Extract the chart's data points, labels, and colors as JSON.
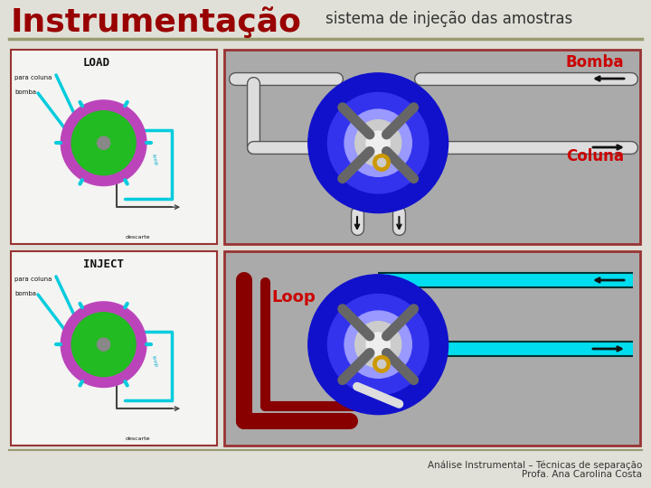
{
  "title": "Instrumentação",
  "subtitle": "sistema de injeção das amostras",
  "title_color": "#990000",
  "title_fontsize": 26,
  "subtitle_fontsize": 12,
  "bg_color": "#E0E0D8",
  "separator_color": "#9A9A70",
  "footer_line1": "Análise Instrumental – Técnicas de separação",
  "footer_line2": "Profa. Ana Carolina Costa",
  "footer_fontsize": 7.5,
  "load_label": "LOAD",
  "inject_label": "INJECT",
  "bomba_label": "Bomba",
  "coluna_label": "Coluna",
  "loop_label": "Loop",
  "label_color_red": "#CC0000",
  "box_border_color": "#993333",
  "left_box_bg": "#F4F4F2",
  "gray_panel": "#AAAAAA",
  "blue_outer": "#1111CC",
  "blue_mid": "#3333EE",
  "blue_inner_light": "#9999FF",
  "silver_disk": "#CCCCCC",
  "white_disk": "#EEEEEE",
  "cyan_color": "#00DDEE",
  "dark_red": "#880000",
  "gold_color": "#CC9900",
  "arm_color": "#666666",
  "tube_white": "#DDDDDD",
  "arrow_color": "#111111"
}
